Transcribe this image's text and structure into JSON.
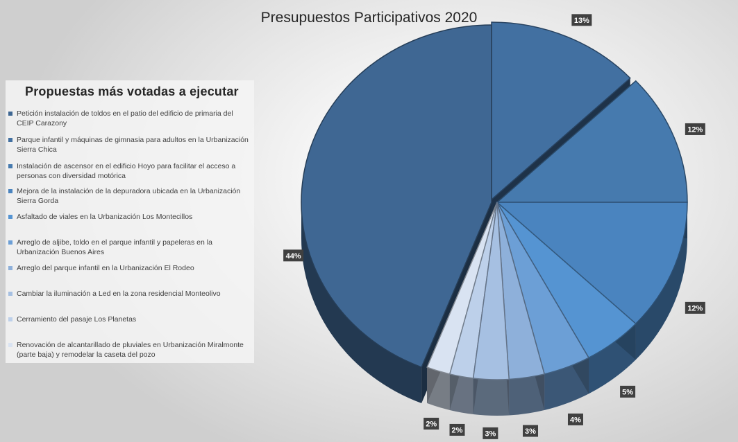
{
  "chart_data": {
    "type": "pie",
    "title": "Presupuestos Participativos 2020",
    "legend_title": "Propuestas  más votadas  a ejecutar",
    "legend_position": "left",
    "series": [
      {
        "name": "Petición instalación de toldos en el patio del edificio de primaria del CEIP Carazony",
        "value": 44,
        "label": "44%",
        "color": "#3f6793"
      },
      {
        "name": "Parque infantil y máquinas de gimnasia para adultos en la Urbanización Sierra Chica",
        "value": 13,
        "label": "13%",
        "color": "#4270a1"
      },
      {
        "name": "Instalación de ascensor en el edificio Hoyo para facilitar el acceso a personas con diversidad motórica",
        "value": 12,
        "label": "12%",
        "color": "#467aae"
      },
      {
        "name": "Mejora de la instalación de la depuradora ubicada en la Urbanización Sierra Gorda",
        "value": 12,
        "label": "12%",
        "color": "#4a84bf"
      },
      {
        "name": "Asfaltado de viales en la Urbanización Los Montecillos",
        "value": 5,
        "label": "5%",
        "color": "#5594d2"
      },
      {
        "name": "Arreglo de aljibe, toldo en el parque infantil y papeleras en la Urbanización Buenos Aires",
        "value": 4,
        "label": "4%",
        "color": "#6c9fd6"
      },
      {
        "name": "Arreglo del parque infantil en la Urbanización El Rodeo",
        "value": 3,
        "label": "3%",
        "color": "#8eb0da"
      },
      {
        "name": "Cambiar la iluminación a Led en la zona residencial Monteolivo",
        "value": 3,
        "label": "3%",
        "color": "#a6c0e2"
      },
      {
        "name": "Cerramiento del pasaje Los Planetas",
        "value": 2,
        "label": "2%",
        "color": "#bdd0ea"
      },
      {
        "name": "Renovación de alcantarillado de pluviales en Urbanización Miralmonte (parte baja) y remodelar la caseta del pozo",
        "value": 2,
        "label": "2%",
        "color": "#d9e3f2"
      }
    ]
  }
}
